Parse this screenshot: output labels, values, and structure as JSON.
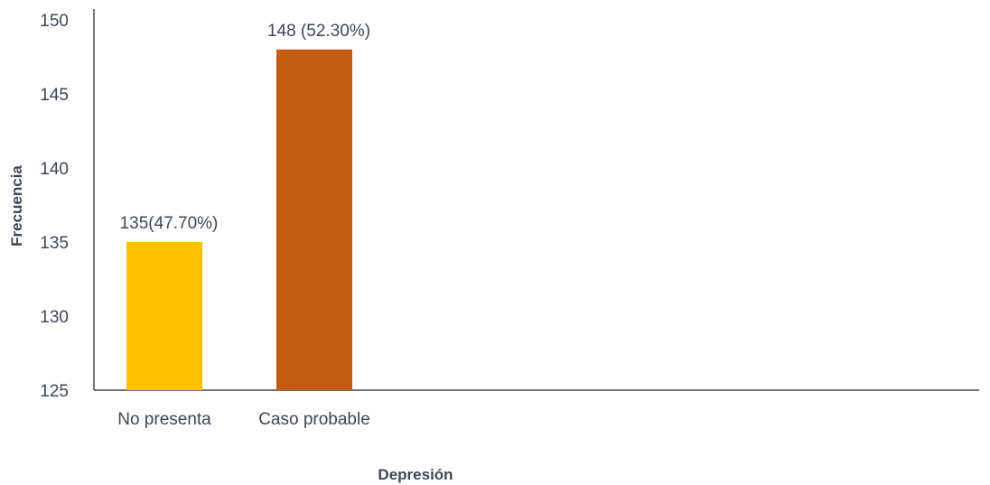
{
  "chart_data": {
    "type": "bar",
    "categories": [
      "No presenta",
      "Caso probable"
    ],
    "values": [
      135,
      148
    ],
    "data_labels": [
      "135(47.70%)",
      "148 (52.30%)"
    ],
    "colors": [
      "#FFC000",
      "#C55A11"
    ],
    "title": "",
    "xlabel": "Depresión",
    "ylabel": "Frecuencia",
    "ylim": [
      125,
      150
    ],
    "yticks": [
      "125",
      "130",
      "135",
      "140",
      "145",
      "150"
    ],
    "grid": false,
    "legend": "none"
  }
}
